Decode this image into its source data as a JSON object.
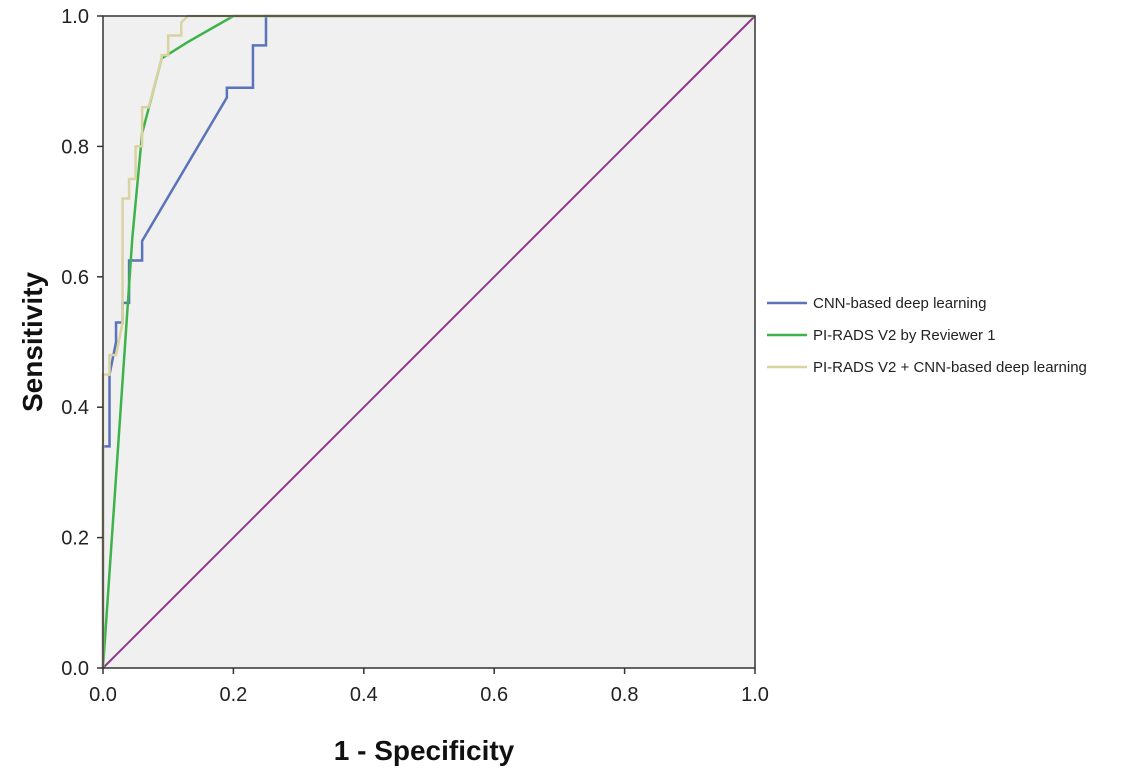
{
  "chart_data": {
    "type": "line",
    "title": "",
    "xlabel": "1 - Specificity",
    "ylabel": "Sensitivity",
    "xlim": [
      0,
      1
    ],
    "ylim": [
      0,
      1
    ],
    "x_ticks": [
      "0.0",
      "0.2",
      "0.4",
      "0.6",
      "0.8",
      "1.0"
    ],
    "y_ticks": [
      "0.0",
      "0.2",
      "0.4",
      "0.6",
      "0.8",
      "1.0"
    ],
    "grid": false,
    "plot_background": "#f0f0f0",
    "legend_position": "right",
    "reference_line": {
      "x": [
        0,
        1
      ],
      "y": [
        0,
        1
      ],
      "color": "#8b3a8b"
    },
    "series": [
      {
        "name": "CNN-based deep learning",
        "color": "#5b73b8",
        "x": [
          0.0,
          0.0,
          0.01,
          0.01,
          0.02,
          0.02,
          0.03,
          0.03,
          0.04,
          0.04,
          0.06,
          0.06,
          0.19,
          0.19,
          0.23,
          0.23,
          0.25,
          0.25,
          1.0
        ],
        "y": [
          0.0,
          0.34,
          0.34,
          0.45,
          0.5,
          0.53,
          0.53,
          0.56,
          0.56,
          0.625,
          0.625,
          0.655,
          0.875,
          0.89,
          0.89,
          0.955,
          0.955,
          1.0,
          1.0
        ]
      },
      {
        "name": "PI-RADS V2 by Reviewer 1",
        "color": "#3db34a",
        "x": [
          0.0,
          0.045,
          0.06,
          0.09,
          0.13,
          0.2,
          1.0
        ],
        "y": [
          0.0,
          0.66,
          0.82,
          0.935,
          0.96,
          1.0,
          1.0
        ]
      },
      {
        "name": "PI-RADS V2 + CNN-based deep learning",
        "color": "#d9d3a1",
        "x": [
          0.0,
          0.0,
          0.01,
          0.01,
          0.02,
          0.03,
          0.03,
          0.04,
          0.04,
          0.05,
          0.05,
          0.06,
          0.06,
          0.07,
          0.09,
          0.09,
          0.1,
          0.1,
          0.12,
          0.12,
          0.13,
          1.0
        ],
        "y": [
          0.0,
          0.45,
          0.45,
          0.48,
          0.48,
          0.53,
          0.72,
          0.72,
          0.75,
          0.75,
          0.8,
          0.8,
          0.86,
          0.86,
          0.935,
          0.94,
          0.94,
          0.97,
          0.97,
          0.99,
          1.0,
          1.0
        ]
      }
    ]
  }
}
